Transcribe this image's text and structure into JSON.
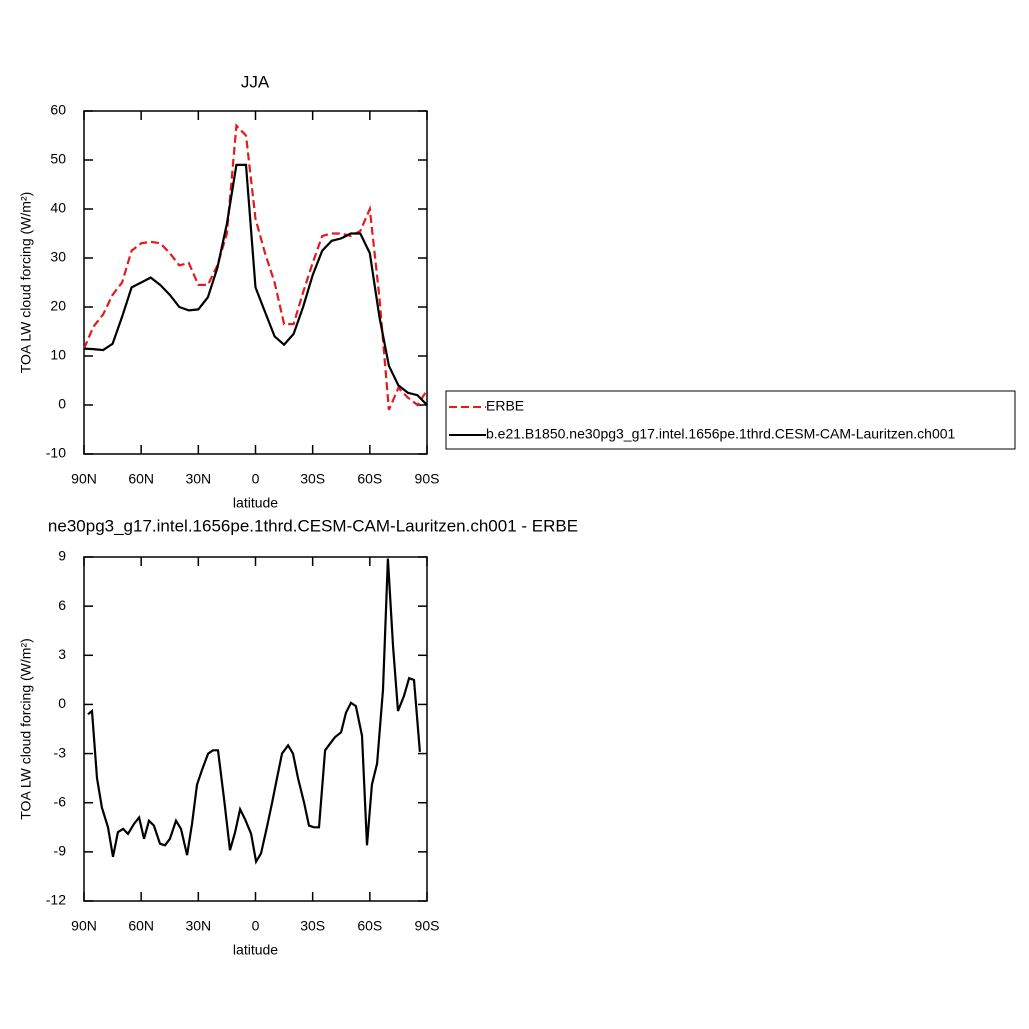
{
  "chart_data": [
    {
      "type": "line",
      "title": "JJA",
      "xlabel": "latitude",
      "ylabel": "TOA LW cloud forcing (W/m²)",
      "x": [
        90,
        85,
        80,
        75,
        70,
        65,
        60,
        55,
        50,
        45,
        40,
        35,
        30,
        25,
        20,
        15,
        10,
        5,
        0,
        -5,
        -10,
        -15,
        -20,
        -25,
        -30,
        -35,
        -40,
        -45,
        -50,
        -55,
        -60,
        -65,
        -70,
        -75,
        -80,
        -85,
        -90
      ],
      "series": [
        {
          "name": "ERBE",
          "color": "#e41a1c",
          "line_style": "dashed",
          "values": [
            11.5,
            16,
            18.5,
            22.5,
            25,
            31.5,
            33,
            33.3,
            33,
            31,
            28.5,
            29,
            24.5,
            24.5,
            28.5,
            35,
            57,
            55,
            38,
            31,
            25,
            16.5,
            16.5,
            23,
            29,
            34.5,
            35,
            35,
            34.5,
            35.5,
            40,
            22,
            -1,
            3.5,
            1.5,
            0,
            3
          ]
        },
        {
          "name": "b.e21.B1850.ne30pg3_g17.intel.1656pe.1thrd.CESM-CAM-Lauritzen.ch001",
          "color": "#000000",
          "line_style": "solid",
          "values": [
            11.5,
            11.4,
            11.2,
            12.5,
            18,
            24,
            25,
            26,
            24.5,
            22.5,
            20,
            19.3,
            19.5,
            22,
            28,
            37,
            49,
            49,
            24,
            19,
            14,
            12.3,
            14.5,
            20,
            26.5,
            31.5,
            33.5,
            34,
            35,
            35,
            31,
            18,
            8,
            4,
            2.5,
            2,
            0
          ]
        }
      ],
      "xlim": [
        90,
        -90
      ],
      "xticks": [
        {
          "value": 90,
          "label": "90N"
        },
        {
          "value": 60,
          "label": "60N"
        },
        {
          "value": 30,
          "label": "30N"
        },
        0,
        {
          "value": -30,
          "label": "30S"
        },
        {
          "value": -60,
          "label": "60S"
        },
        {
          "value": -90,
          "label": "90S"
        }
      ],
      "ylim": [
        -10,
        60
      ],
      "yticks": [
        -10,
        0,
        10,
        20,
        30,
        40,
        50,
        60
      ],
      "legend": "right"
    },
    {
      "type": "line",
      "title": "ne30pg3_g17.intel.1656pe.1thrd.CESM-CAM-Lauritzen.ch001 - ERBE",
      "xlabel": "latitude",
      "ylabel": "TOA LW cloud forcing (W/m²)",
      "x": [
        87.9,
        85.8,
        83.2,
        80.6,
        77.4,
        74.8,
        72.2,
        69.5,
        66.9,
        63.8,
        61.1,
        58.5,
        55.9,
        53.3,
        50.1,
        47.5,
        44.9,
        41.7,
        39.1,
        35.9,
        33.3,
        30.7,
        28.1,
        24.9,
        22.3,
        19.7,
        16.5,
        13.4,
        10.7,
        8.1,
        5.5,
        2.3,
        -0.3,
        -2.9,
        -6.0,
        -8.7,
        -11.3,
        -13.9,
        -17.1,
        -19.7,
        -22.3,
        -25.5,
        -28.1,
        -30.7,
        -33.3,
        -36.5,
        -39.1,
        -41.7,
        -44.9,
        -47.5,
        -50.1,
        -52.7,
        -55.9,
        -58.5,
        -61.1,
        -63.8,
        -66.9,
        -69.5,
        -72.2,
        -74.8,
        -77.9,
        -80.6,
        -83.2,
        -86.3
      ],
      "series": [
        {
          "name": null,
          "color": "#000000",
          "line_style": "solid",
          "values": [
            -0.6,
            -0.4,
            -4.5,
            -6.3,
            -7.5,
            -9.3,
            -7.8,
            -7.6,
            -7.9,
            -7.3,
            -6.9,
            -8.2,
            -7.1,
            -7.4,
            -8.5,
            -8.6,
            -8.2,
            -7.1,
            -7.6,
            -9.2,
            -7.3,
            -4.9,
            -4.0,
            -3.0,
            -2.8,
            -2.8,
            -5.8,
            -8.9,
            -7.8,
            -6.4,
            -7.0,
            -7.9,
            -9.6,
            -9.1,
            -7.5,
            -6.0,
            -4.5,
            -3.0,
            -2.5,
            -3.0,
            -4.5,
            -6.0,
            -7.4,
            -7.5,
            -7.5,
            -2.8,
            -2.4,
            -2.0,
            -1.7,
            -0.5,
            0.1,
            -0.1,
            -1.9,
            -8.6,
            -4.9,
            -3.6,
            0.9,
            8.9,
            3.5,
            -0.4,
            0.5,
            1.6,
            1.5,
            -2.9
          ]
        }
      ],
      "xlim": [
        90,
        -90
      ],
      "xticks": [
        {
          "value": 90,
          "label": "90N"
        },
        {
          "value": 60,
          "label": "60N"
        },
        {
          "value": 30,
          "label": "30N"
        },
        0,
        {
          "value": -30,
          "label": "30S"
        },
        {
          "value": -60,
          "label": "60S"
        },
        {
          "value": -90,
          "label": "90S"
        }
      ],
      "ylim": [
        -12,
        9
      ],
      "yticks": [
        -12,
        -9,
        -6,
        -3,
        0,
        3,
        6,
        9
      ]
    }
  ]
}
